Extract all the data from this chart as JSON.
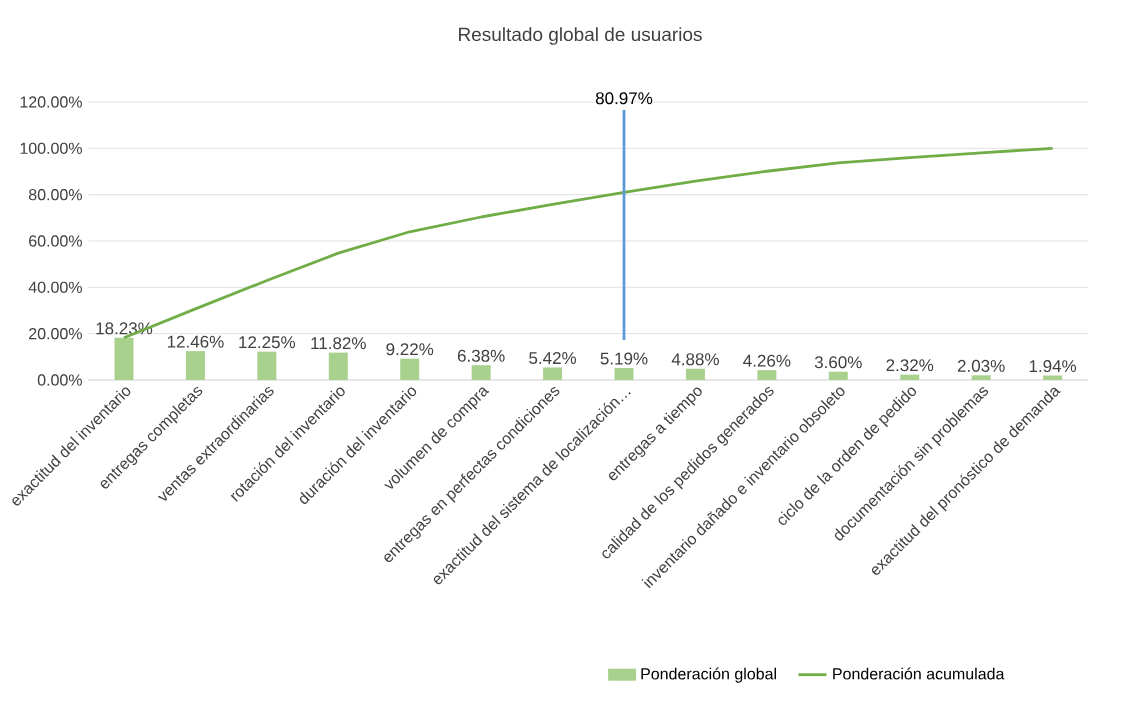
{
  "chart_data": {
    "type": "bar",
    "title": "Resultado global de usuarios",
    "categories": [
      "exactitud del inventario",
      "entregas completas",
      "ventas extraordinarias",
      "rotación del inventario",
      "duración del inventario",
      "volumen de compra",
      "entregas en perfectas condiciones",
      "exactitud del sistema de localización…",
      "entregas a tiempo",
      "calidad de los pedidos generados",
      "inventario dañado e inventario obsoleto",
      "ciclo de la orden de pedido",
      "documentación sin problemas",
      "exactitud del pronóstico de demanda"
    ],
    "series": [
      {
        "name": "Ponderación global",
        "color": "#a9d18e",
        "values": [
          18.23,
          12.46,
          12.25,
          11.82,
          9.22,
          6.38,
          5.42,
          5.19,
          4.88,
          4.26,
          3.6,
          2.32,
          2.03,
          1.94
        ],
        "value_labels": [
          "18.23%",
          "12.46%",
          "12.25%",
          "11.82%",
          "9.22%",
          "6.38%",
          "5.42%",
          "5.19%",
          "4.88%",
          "4.26%",
          "3.60%",
          "2.32%",
          "2.03%",
          "1.94%"
        ]
      },
      {
        "name": "Ponderación acumulada",
        "type": "line",
        "color": "#70ad47",
        "values": [
          18.23,
          30.69,
          42.94,
          54.76,
          63.98,
          70.36,
          75.78,
          80.97,
          85.85,
          90.11,
          93.71,
          96.03,
          98.06,
          100.0
        ]
      }
    ],
    "ylim": [
      0,
      120
    ],
    "yticks": [
      {
        "value": 0,
        "label": "0.00%"
      },
      {
        "value": 20,
        "label": "20.00%"
      },
      {
        "value": 40,
        "label": "40.00%"
      },
      {
        "value": 60,
        "label": "60.00%"
      },
      {
        "value": 80,
        "label": "80.00%"
      },
      {
        "value": 100,
        "label": "100.00%"
      },
      {
        "value": 120,
        "label": "120.00%"
      }
    ],
    "ref_lines": [
      {
        "axis": "x",
        "value": "exactitud del sistema de localización…",
        "label": "80.97%",
        "color": "#5b9bd5"
      }
    ],
    "grid": "y",
    "legend": "bottom",
    "marker": "none"
  }
}
